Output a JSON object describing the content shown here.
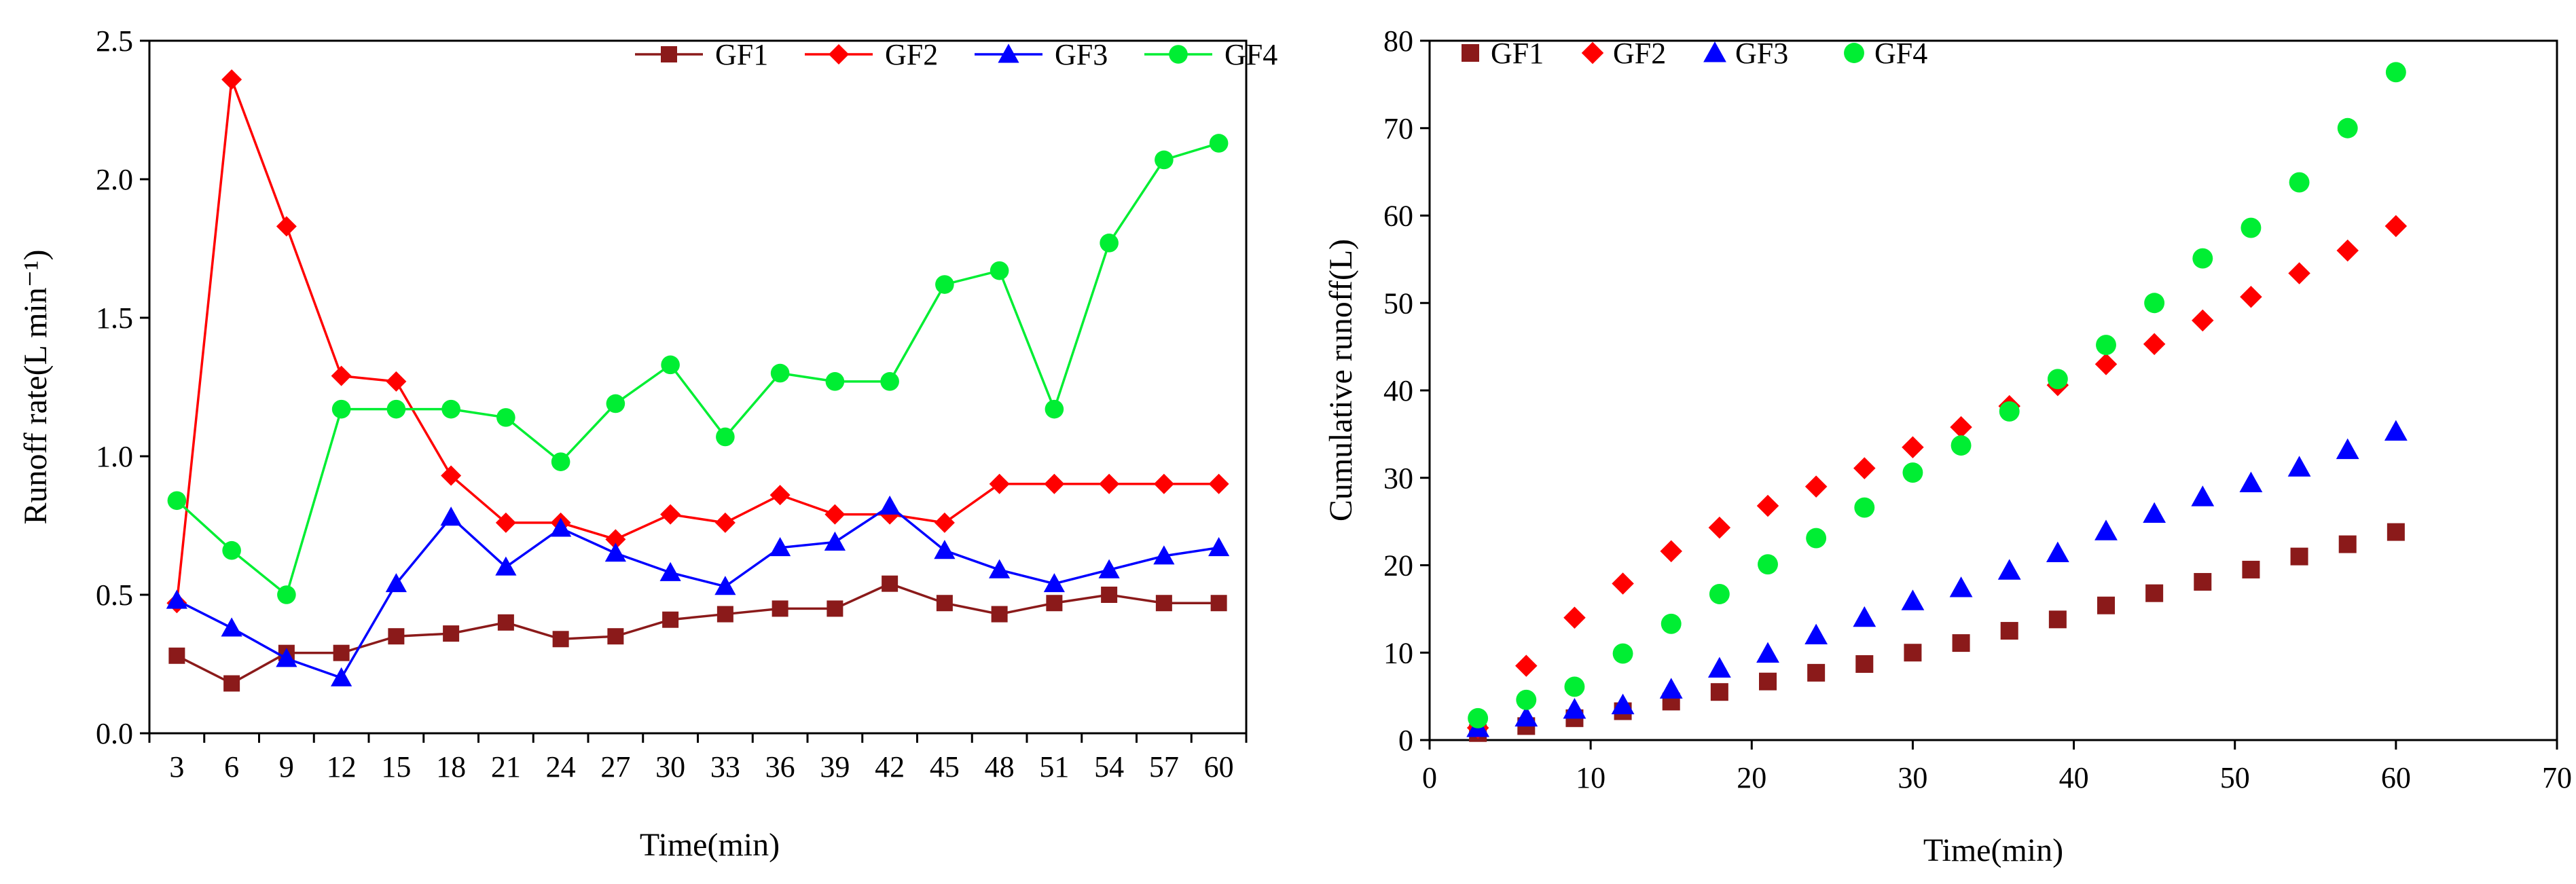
{
  "chart_data": [
    {
      "type": "line",
      "title": "",
      "xlabel": "Time(min)",
      "ylabel": "Runoff rate(L min⁻¹)",
      "ylim": [
        0,
        2.5
      ],
      "yticks": [
        "0.0",
        "0.5",
        "1.0",
        "1.5",
        "2.0",
        "2.5"
      ],
      "categories": [
        "3",
        "6",
        "9",
        "12",
        "15",
        "18",
        "21",
        "24",
        "27",
        "30",
        "33",
        "36",
        "39",
        "42",
        "45",
        "48",
        "51",
        "54",
        "57",
        "60"
      ],
      "legend_position": "top-right",
      "series": [
        {
          "name": "GF1",
          "color": "#8b1a1a",
          "marker": "square",
          "values": [
            0.28,
            0.18,
            0.29,
            0.29,
            0.35,
            0.36,
            0.4,
            0.34,
            0.35,
            0.41,
            0.43,
            0.45,
            0.45,
            0.54,
            0.47,
            0.43,
            0.47,
            0.5,
            0.47,
            0.47
          ]
        },
        {
          "name": "GF2",
          "color": "#ff0000",
          "marker": "diamond",
          "values": [
            0.47,
            2.36,
            1.83,
            1.29,
            1.27,
            0.93,
            0.76,
            0.76,
            0.7,
            0.79,
            0.76,
            0.86,
            0.79,
            0.79,
            0.76,
            0.9,
            0.9,
            0.9,
            0.9,
            0.9
          ]
        },
        {
          "name": "GF3",
          "color": "#0000ff",
          "marker": "triangle",
          "values": [
            0.48,
            0.38,
            0.27,
            0.2,
            0.54,
            0.78,
            0.6,
            0.74,
            0.65,
            0.58,
            0.53,
            0.67,
            0.69,
            0.82,
            0.66,
            0.59,
            0.54,
            0.59,
            0.64,
            0.67
          ]
        },
        {
          "name": "GF4",
          "color": "#00ee33",
          "marker": "circle",
          "values": [
            0.84,
            0.66,
            0.5,
            1.17,
            1.17,
            1.17,
            1.14,
            0.98,
            1.19,
            1.33,
            1.07,
            1.3,
            1.27,
            1.27,
            1.62,
            1.67,
            1.17,
            1.77,
            2.07,
            2.13
          ]
        }
      ]
    },
    {
      "type": "scatter",
      "title": "",
      "xlabel": "Time(min)",
      "ylabel": "Cumulative runoff(L)",
      "xlim": [
        0,
        70
      ],
      "ylim": [
        0,
        80
      ],
      "xticks": [
        "0",
        "10",
        "20",
        "30",
        "40",
        "50",
        "60",
        "70"
      ],
      "yticks": [
        "0",
        "10",
        "20",
        "30",
        "40",
        "50",
        "60",
        "70",
        "80"
      ],
      "x": [
        3,
        6,
        9,
        12,
        15,
        18,
        21,
        24,
        27,
        30,
        33,
        36,
        39,
        42,
        45,
        48,
        51,
        54,
        57,
        60
      ],
      "legend_position": "top-left",
      "series": [
        {
          "name": "GF1",
          "color": "#8b1a1a",
          "marker": "square",
          "values": [
            0.8,
            1.6,
            2.5,
            3.3,
            4.4,
            5.5,
            6.7,
            7.7,
            8.7,
            10.0,
            11.1,
            12.5,
            13.8,
            15.4,
            16.8,
            18.1,
            19.5,
            21.0,
            22.4,
            23.8
          ]
        },
        {
          "name": "GF2",
          "color": "#ff0000",
          "marker": "diamond",
          "values": [
            1.4,
            8.5,
            14.0,
            17.9,
            21.6,
            24.3,
            26.8,
            29.0,
            31.1,
            33.5,
            35.8,
            38.2,
            40.6,
            43.0,
            45.3,
            48.0,
            50.7,
            53.4,
            56.0,
            58.8
          ]
        },
        {
          "name": "GF3",
          "color": "#0000ff",
          "marker": "triangle",
          "values": [
            1.4,
            2.6,
            3.5,
            4.0,
            5.8,
            8.2,
            9.9,
            12.0,
            14.0,
            15.9,
            17.4,
            19.4,
            21.4,
            23.9,
            25.9,
            27.8,
            29.4,
            31.2,
            33.2,
            35.3
          ]
        },
        {
          "name": "GF4",
          "color": "#00ee33",
          "marker": "circle",
          "values": [
            2.5,
            4.6,
            6.1,
            9.9,
            13.3,
            16.7,
            20.1,
            23.1,
            26.6,
            30.6,
            33.7,
            37.6,
            41.3,
            45.2,
            50.0,
            55.1,
            58.6,
            63.8,
            70.0,
            76.4
          ]
        }
      ]
    }
  ]
}
